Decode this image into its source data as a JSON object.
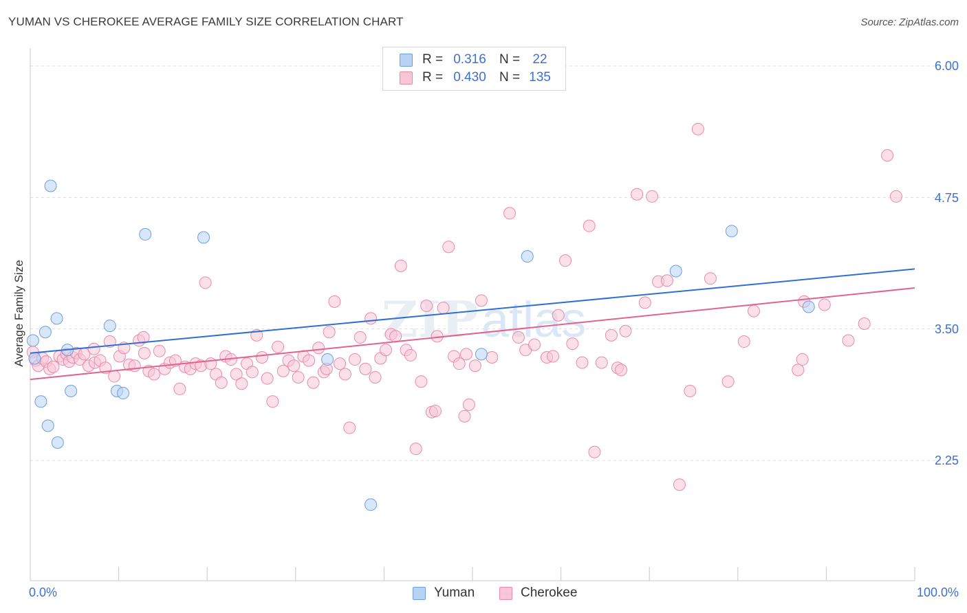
{
  "header": {
    "title": "YUMAN VS CHEROKEE AVERAGE FAMILY SIZE CORRELATION CHART",
    "source": "Source: ZipAtlas.com"
  },
  "legend_top": {
    "rows": [
      {
        "r_label": "R =",
        "r_value": "0.316",
        "n_label": "N =",
        "n_value": "22"
      },
      {
        "r_label": "R =",
        "r_value": "0.430",
        "n_label": "N =",
        "n_value": "135"
      }
    ]
  },
  "legend_bottom": {
    "items": [
      "Yuman",
      "Cherokee"
    ]
  },
  "axes": {
    "ylabel": "Average Family Size",
    "x_min_label": "0.0%",
    "x_max_label": "100.0%",
    "y_ticks": [
      "6.00",
      "4.75",
      "3.50",
      "2.25"
    ]
  },
  "colors": {
    "yuman_fill": "#b9d3f5",
    "yuman_stroke": "#6b9fe0",
    "yuman_line": "#2f6ed4",
    "cherokee_fill": "#f8c6d5",
    "cherokee_stroke": "#e98aab",
    "cherokee_line": "#e2628f",
    "tick_text": "#3f6fd0"
  },
  "chart_data": {
    "type": "scatter",
    "xlabel": "",
    "ylabel": "Average Family Size",
    "xlim": [
      0,
      100
    ],
    "ylim": [
      1.2,
      6.1
    ],
    "y_ticks": [
      6.0,
      4.75,
      3.5,
      2.25
    ],
    "grid": "horizontal dashed",
    "legend": "top-center",
    "series": [
      {
        "name": "Yuman",
        "r": 0.316,
        "n": 22,
        "trend": {
          "x": [
            0,
            100
          ],
          "y": [
            3.27,
            4.07
          ]
        },
        "points": [
          [
            0.3,
            3.39
          ],
          [
            1.2,
            2.81
          ],
          [
            1.7,
            3.47
          ],
          [
            2.0,
            2.58
          ],
          [
            2.3,
            4.86
          ],
          [
            3.0,
            3.6
          ],
          [
            3.1,
            2.42
          ],
          [
            4.2,
            3.3
          ],
          [
            4.6,
            2.91
          ],
          [
            9.0,
            3.53
          ],
          [
            9.8,
            2.91
          ],
          [
            10.5,
            2.89
          ],
          [
            13.0,
            4.4
          ],
          [
            19.6,
            4.37
          ],
          [
            33.6,
            3.21
          ],
          [
            38.5,
            1.83
          ],
          [
            51.0,
            3.26
          ],
          [
            56.2,
            4.19
          ],
          [
            73.0,
            4.05
          ],
          [
            79.3,
            4.43
          ],
          [
            88.0,
            3.71
          ],
          [
            0.5,
            3.22
          ]
        ]
      },
      {
        "name": "Cherokee",
        "r": 0.43,
        "n": 135,
        "trend": {
          "x": [
            0,
            100
          ],
          "y": [
            3.02,
            3.89
          ]
        },
        "points": [
          [
            0.3,
            3.28
          ],
          [
            0.6,
            3.2
          ],
          [
            0.9,
            3.15
          ],
          [
            1.4,
            3.22
          ],
          [
            1.8,
            3.19
          ],
          [
            2.2,
            3.12
          ],
          [
            2.6,
            3.14
          ],
          [
            3.3,
            3.24
          ],
          [
            3.7,
            3.21
          ],
          [
            4.1,
            3.26
          ],
          [
            4.4,
            3.19
          ],
          [
            4.8,
            3.23
          ],
          [
            5.2,
            3.27
          ],
          [
            5.6,
            3.21
          ],
          [
            6.1,
            3.26
          ],
          [
            6.6,
            3.15
          ],
          [
            7.3,
            3.18
          ],
          [
            7.9,
            3.2
          ],
          [
            8.5,
            3.13
          ],
          [
            9.0,
            3.38
          ],
          [
            9.5,
            3.05
          ],
          [
            10.1,
            3.24
          ],
          [
            10.6,
            3.32
          ],
          [
            11.2,
            3.16
          ],
          [
            11.8,
            3.15
          ],
          [
            12.3,
            3.39
          ],
          [
            12.8,
            3.42
          ],
          [
            13.4,
            3.1
          ],
          [
            14.0,
            3.07
          ],
          [
            14.6,
            3.29
          ],
          [
            15.2,
            3.12
          ],
          [
            15.8,
            3.18
          ],
          [
            16.4,
            3.2
          ],
          [
            16.9,
            2.93
          ],
          [
            17.5,
            3.14
          ],
          [
            18.1,
            3.12
          ],
          [
            18.7,
            3.17
          ],
          [
            19.3,
            3.15
          ],
          [
            19.8,
            3.94
          ],
          [
            20.4,
            3.17
          ],
          [
            21.0,
            3.07
          ],
          [
            21.6,
            2.99
          ],
          [
            22.1,
            3.24
          ],
          [
            22.7,
            3.21
          ],
          [
            23.3,
            3.07
          ],
          [
            23.9,
            2.98
          ],
          [
            24.5,
            3.17
          ],
          [
            25.1,
            3.09
          ],
          [
            25.6,
            3.44
          ],
          [
            26.2,
            3.23
          ],
          [
            26.8,
            3.03
          ],
          [
            27.4,
            2.81
          ],
          [
            28.0,
            3.33
          ],
          [
            28.6,
            3.1
          ],
          [
            29.2,
            3.2
          ],
          [
            29.8,
            3.15
          ],
          [
            30.3,
            3.04
          ],
          [
            30.9,
            3.24
          ],
          [
            31.5,
            3.2
          ],
          [
            32.0,
            2.99
          ],
          [
            32.6,
            3.32
          ],
          [
            33.2,
            3.09
          ],
          [
            33.8,
            3.47
          ],
          [
            34.4,
            3.76
          ],
          [
            35.0,
            3.17
          ],
          [
            35.6,
            3.07
          ],
          [
            36.1,
            2.56
          ],
          [
            36.7,
            3.21
          ],
          [
            37.3,
            3.42
          ],
          [
            37.9,
            3.12
          ],
          [
            38.5,
            3.6
          ],
          [
            39.0,
            3.04
          ],
          [
            39.6,
            3.22
          ],
          [
            40.2,
            3.3
          ],
          [
            40.8,
            3.45
          ],
          [
            41.3,
            3.43
          ],
          [
            41.9,
            4.1
          ],
          [
            42.5,
            3.3
          ],
          [
            43.0,
            3.25
          ],
          [
            43.6,
            2.36
          ],
          [
            44.2,
            3.0
          ],
          [
            44.8,
            3.72
          ],
          [
            45.4,
            2.71
          ],
          [
            46.0,
            3.43
          ],
          [
            46.7,
            3.7
          ],
          [
            47.3,
            4.28
          ],
          [
            47.9,
            3.24
          ],
          [
            48.5,
            3.17
          ],
          [
            49.1,
            2.67
          ],
          [
            49.6,
            2.78
          ],
          [
            50.3,
            3.15
          ],
          [
            51.0,
            3.77
          ],
          [
            52.2,
            3.23
          ],
          [
            54.2,
            4.6
          ],
          [
            55.2,
            3.42
          ],
          [
            56.0,
            3.3
          ],
          [
            57.0,
            3.35
          ],
          [
            58.4,
            3.23
          ],
          [
            59.7,
            3.63
          ],
          [
            60.5,
            4.15
          ],
          [
            61.3,
            3.36
          ],
          [
            62.4,
            3.18
          ],
          [
            63.2,
            4.48
          ],
          [
            63.8,
            2.33
          ],
          [
            64.6,
            3.18
          ],
          [
            65.7,
            3.44
          ],
          [
            66.4,
            3.13
          ],
          [
            67.3,
            3.48
          ],
          [
            68.6,
            4.78
          ],
          [
            69.5,
            3.75
          ],
          [
            70.3,
            4.76
          ],
          [
            71.0,
            3.95
          ],
          [
            72.0,
            3.96
          ],
          [
            73.4,
            2.02
          ],
          [
            74.6,
            2.91
          ],
          [
            75.5,
            5.4
          ],
          [
            76.9,
            3.98
          ],
          [
            78.9,
            3.0
          ],
          [
            80.7,
            3.38
          ],
          [
            81.8,
            3.67
          ],
          [
            86.8,
            3.11
          ],
          [
            87.3,
            3.21
          ],
          [
            87.5,
            3.76
          ],
          [
            89.8,
            3.73
          ],
          [
            92.5,
            3.39
          ],
          [
            94.3,
            3.55
          ],
          [
            96.9,
            5.15
          ],
          [
            97.9,
            4.76
          ],
          [
            66.8,
            3.11
          ],
          [
            59.1,
            3.24
          ],
          [
            12.9,
            3.27
          ],
          [
            7.2,
            3.31
          ],
          [
            45.8,
            2.72
          ],
          [
            49.3,
            3.26
          ],
          [
            33.5,
            3.12
          ]
        ]
      }
    ]
  }
}
